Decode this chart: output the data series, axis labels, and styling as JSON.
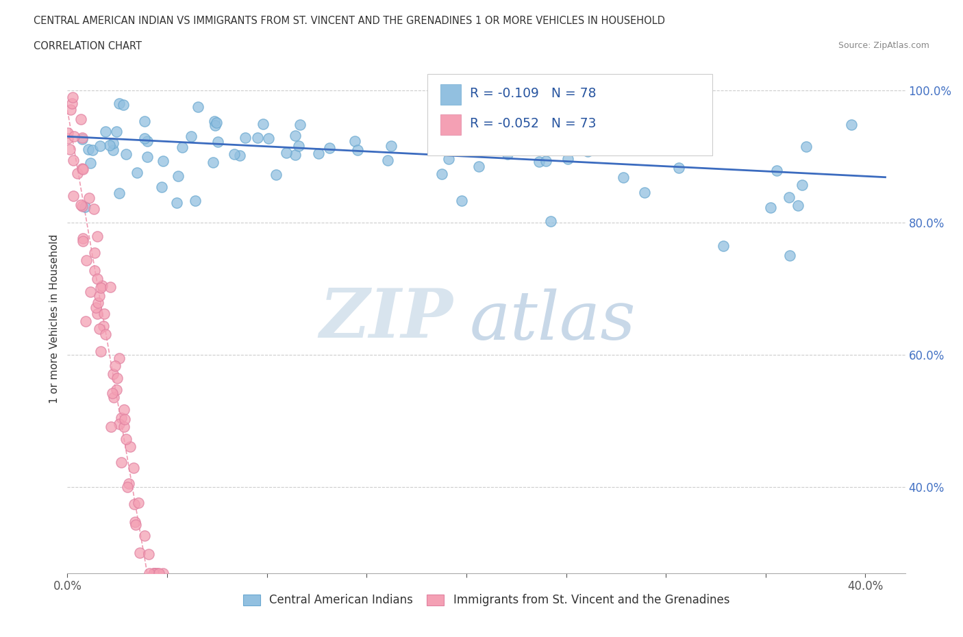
{
  "title_line1": "CENTRAL AMERICAN INDIAN VS IMMIGRANTS FROM ST. VINCENT AND THE GRENADINES 1 OR MORE VEHICLES IN HOUSEHOLD",
  "title_line2": "CORRELATION CHART",
  "source_text": "Source: ZipAtlas.com",
  "ylabel": "1 or more Vehicles in Household",
  "xlim": [
    0.0,
    0.42
  ],
  "ylim": [
    0.27,
    1.04
  ],
  "blue_R": -0.109,
  "blue_N": 78,
  "pink_R": -0.052,
  "pink_N": 73,
  "blue_color": "#92C0E0",
  "pink_color": "#F4A0B4",
  "blue_edge_color": "#6AA8D0",
  "pink_edge_color": "#E080A0",
  "blue_line_color": "#3B6BBF",
  "pink_line_color": "#E87090",
  "legend_label_blue": "Central American Indians",
  "legend_label_pink": "Immigrants from St. Vincent and the Grenadines",
  "watermark_zip": "ZIP",
  "watermark_atlas": "atlas"
}
